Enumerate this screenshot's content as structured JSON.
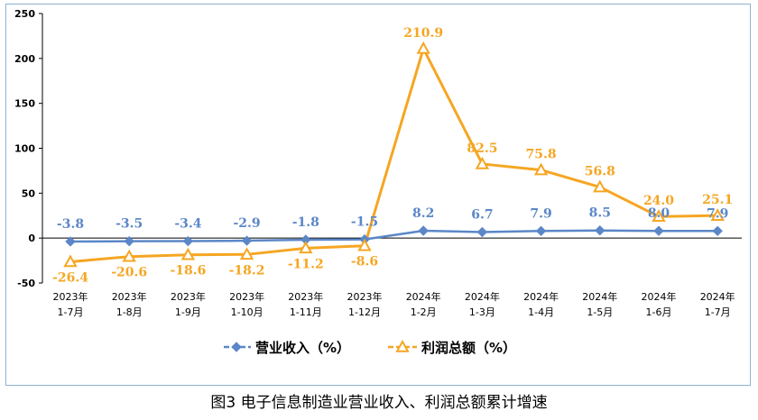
{
  "caption": "图3 电子信息制造业营业收入、利润总额累计增速",
  "colors": {
    "revenue": "#5b87c8",
    "profit": "#f5a623",
    "axis": "#000000",
    "frame": "#8fb2cf"
  },
  "chart_data": {
    "type": "line",
    "title": "",
    "xlabel": "",
    "ylabel": "",
    "ylim": [
      -50,
      250
    ],
    "yticks": [
      -50,
      0,
      50,
      100,
      150,
      200,
      250
    ],
    "grid": false,
    "legend_position": "bottom",
    "categories": [
      [
        "2023年",
        "1-7月"
      ],
      [
        "2023年",
        "1-8月"
      ],
      [
        "2023年",
        "1-9月"
      ],
      [
        "2023年",
        "1-10月"
      ],
      [
        "2023年",
        "1-11月"
      ],
      [
        "2023年",
        "1-12月"
      ],
      [
        "2024年",
        "1-2月"
      ],
      [
        "2024年",
        "1-3月"
      ],
      [
        "2024年",
        "1-4月"
      ],
      [
        "2024年",
        "1-5月"
      ],
      [
        "2024年",
        "1-6月"
      ],
      [
        "2024年",
        "1-7月"
      ]
    ],
    "series": [
      {
        "name": "营业收入（%）",
        "marker": "diamond",
        "values": [
          -3.8,
          -3.5,
          -3.4,
          -2.9,
          -1.8,
          -1.5,
          8.2,
          6.7,
          7.9,
          8.5,
          8.0,
          7.9
        ],
        "labels": [
          "-3.8",
          "-3.5",
          "-3.4",
          "-2.9",
          "-1.8",
          "-1.5",
          "8.2",
          "6.7",
          "7.9",
          "8.5",
          "8.0",
          "7.9"
        ]
      },
      {
        "name": "利润总额（%）",
        "marker": "triangle",
        "values": [
          -26.4,
          -20.6,
          -18.6,
          -18.2,
          -11.2,
          -8.6,
          210.9,
          82.5,
          75.8,
          56.8,
          24.0,
          25.1
        ],
        "labels": [
          "-26.4",
          "-20.6",
          "-18.6",
          "-18.2",
          "-11.2",
          "-8.6",
          "210.9",
          "82.5",
          "75.8",
          "56.8",
          "24.0",
          "25.1"
        ]
      }
    ]
  }
}
